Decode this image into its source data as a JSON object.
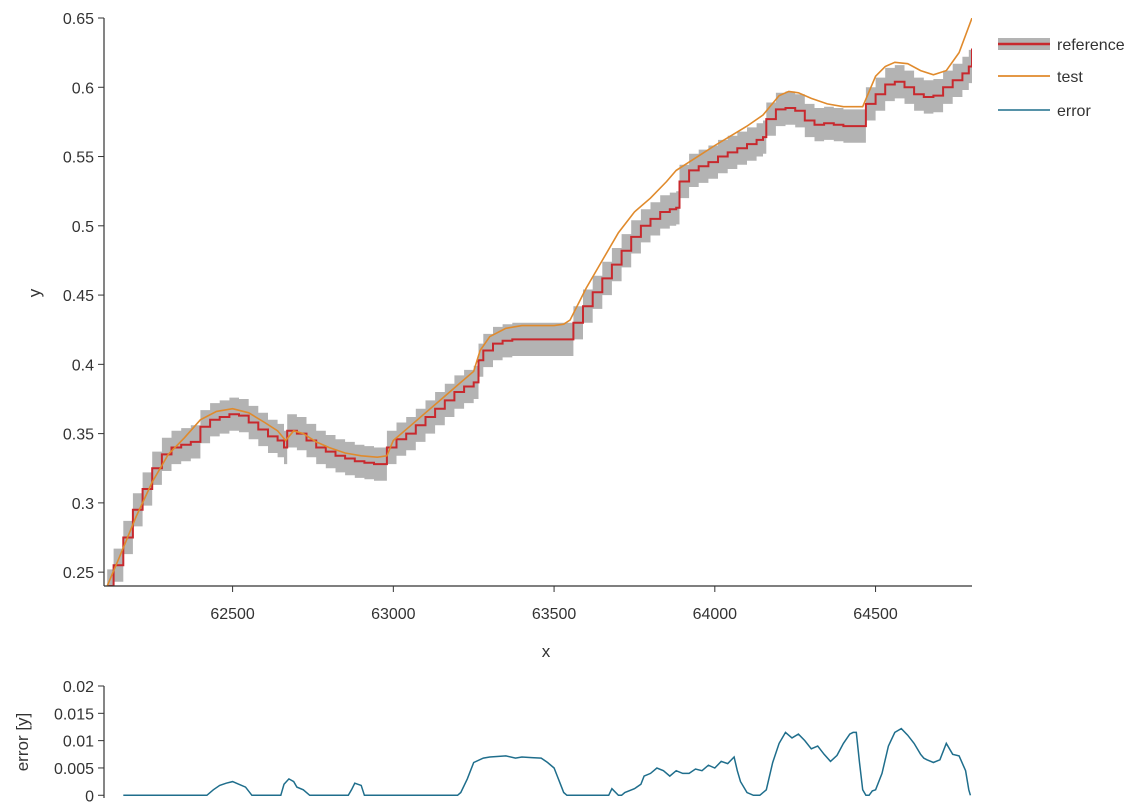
{
  "chart_data": [
    {
      "type": "line",
      "title": "",
      "xlabel": "x",
      "ylabel": "y",
      "xlim": [
        62100,
        64800
      ],
      "ylim": [
        0.24,
        0.65
      ],
      "xticks": [
        62500,
        63000,
        63500,
        64000,
        64500
      ],
      "xtick_labels": [
        "62500",
        "63000",
        "63500",
        "64000",
        "64500"
      ],
      "yticks": [
        0.25,
        0.3,
        0.35,
        0.4,
        0.45,
        0.5,
        0.55,
        0.6,
        0.65
      ],
      "ytick_labels": [
        "0.25",
        "0.3",
        "0.35",
        "0.4",
        "0.45",
        "0.5",
        "0.55",
        "0.6",
        "0.65"
      ],
      "grid": false,
      "legend_position": "top-right",
      "tolerance_band_halfwidth": 0.012,
      "series": [
        {
          "name": "reference",
          "color": "#c8282d",
          "band_color": "#b3b3b3",
          "step": true,
          "x": [
            62110,
            62130,
            62160,
            62190,
            62220,
            62250,
            62280,
            62310,
            62340,
            62370,
            62400,
            62430,
            62460,
            62490,
            62520,
            62550,
            62580,
            62610,
            62640,
            62660,
            62670,
            62700,
            62730,
            62760,
            62790,
            62820,
            62850,
            62880,
            62910,
            62940,
            62960,
            62980,
            63010,
            63040,
            63070,
            63100,
            63130,
            63160,
            63190,
            63220,
            63250,
            63265,
            63280,
            63310,
            63340,
            63370,
            63400,
            63430,
            63460,
            63490,
            63520,
            63545,
            63560,
            63590,
            63620,
            63650,
            63680,
            63710,
            63740,
            63770,
            63800,
            63830,
            63860,
            63880,
            63890,
            63920,
            63950,
            63980,
            64010,
            64040,
            64070,
            64100,
            64130,
            64150,
            64160,
            64190,
            64220,
            64250,
            64280,
            64310,
            64340,
            64370,
            64400,
            64430,
            64440,
            64455,
            64470,
            64500,
            64530,
            64560,
            64590,
            64620,
            64650,
            64680,
            64710,
            64740,
            64770,
            64790,
            64800
          ],
          "values": [
            0.24,
            0.255,
            0.275,
            0.295,
            0.31,
            0.325,
            0.335,
            0.34,
            0.342,
            0.344,
            0.355,
            0.36,
            0.362,
            0.364,
            0.363,
            0.358,
            0.353,
            0.348,
            0.345,
            0.34,
            0.352,
            0.35,
            0.345,
            0.34,
            0.337,
            0.334,
            0.332,
            0.33,
            0.329,
            0.328,
            0.328,
            0.34,
            0.346,
            0.35,
            0.356,
            0.362,
            0.368,
            0.374,
            0.38,
            0.384,
            0.387,
            0.403,
            0.41,
            0.415,
            0.417,
            0.418,
            0.418,
            0.418,
            0.418,
            0.418,
            0.418,
            0.418,
            0.43,
            0.442,
            0.452,
            0.462,
            0.472,
            0.482,
            0.492,
            0.5,
            0.505,
            0.51,
            0.512,
            0.513,
            0.532,
            0.54,
            0.543,
            0.546,
            0.55,
            0.553,
            0.556,
            0.559,
            0.562,
            0.564,
            0.577,
            0.584,
            0.585,
            0.583,
            0.576,
            0.573,
            0.574,
            0.573,
            0.572,
            0.572,
            0.572,
            0.572,
            0.588,
            0.595,
            0.602,
            0.604,
            0.6,
            0.595,
            0.593,
            0.594,
            0.6,
            0.605,
            0.61,
            0.615,
            0.628
          ]
        },
        {
          "name": "test",
          "color": "#e08a2c",
          "step": false,
          "x": [
            62110,
            62150,
            62200,
            62250,
            62300,
            62350,
            62400,
            62450,
            62500,
            62550,
            62600,
            62640,
            62665,
            62690,
            62720,
            62760,
            62800,
            62850,
            62900,
            62950,
            62980,
            63000,
            63050,
            63100,
            63150,
            63200,
            63250,
            63270,
            63300,
            63350,
            63400,
            63450,
            63500,
            63530,
            63550,
            63600,
            63650,
            63700,
            63750,
            63800,
            63850,
            63880,
            63920,
            63960,
            64000,
            64050,
            64100,
            64150,
            64200,
            64230,
            64260,
            64300,
            64350,
            64400,
            64440,
            64460,
            64500,
            64530,
            64560,
            64600,
            64640,
            64680,
            64720,
            64760,
            64800
          ],
          "values": [
            0.24,
            0.262,
            0.29,
            0.315,
            0.335,
            0.347,
            0.36,
            0.366,
            0.368,
            0.365,
            0.358,
            0.352,
            0.345,
            0.352,
            0.35,
            0.344,
            0.34,
            0.336,
            0.334,
            0.333,
            0.334,
            0.345,
            0.355,
            0.365,
            0.375,
            0.385,
            0.395,
            0.41,
            0.42,
            0.426,
            0.428,
            0.428,
            0.428,
            0.429,
            0.432,
            0.455,
            0.475,
            0.495,
            0.51,
            0.52,
            0.532,
            0.54,
            0.546,
            0.552,
            0.558,
            0.565,
            0.572,
            0.58,
            0.594,
            0.597,
            0.596,
            0.592,
            0.588,
            0.586,
            0.586,
            0.586,
            0.608,
            0.615,
            0.618,
            0.617,
            0.612,
            0.609,
            0.612,
            0.625,
            0.65
          ]
        }
      ]
    },
    {
      "type": "line",
      "title": "",
      "xlabel": "",
      "ylabel": "error [y]",
      "xlim": [
        62100,
        64800
      ],
      "ylim": [
        -0.0005,
        0.02
      ],
      "yticks": [
        0,
        0.005,
        0.01,
        0.015,
        0.02
      ],
      "ytick_labels": [
        "0",
        "0.005",
        "0.01",
        "0.015",
        "0.02"
      ],
      "grid": false,
      "series": [
        {
          "name": "error",
          "color": "#1f6e8c",
          "x": [
            62160,
            62420,
            62440,
            62460,
            62480,
            62500,
            62520,
            62540,
            62560,
            62650,
            62660,
            62675,
            62690,
            62700,
            62720,
            62740,
            62860,
            62870,
            62880,
            62890,
            62900,
            62910,
            63200,
            63210,
            63230,
            63250,
            63280,
            63300,
            63350,
            63380,
            63400,
            63430,
            63460,
            63480,
            63500,
            63510,
            63520,
            63530,
            63540,
            63560,
            63600,
            63670,
            63680,
            63700,
            63710,
            63720,
            63750,
            63770,
            63780,
            63800,
            63820,
            63840,
            63860,
            63880,
            63900,
            63920,
            63940,
            63960,
            63980,
            64000,
            64020,
            64040,
            64060,
            64070,
            64080,
            64100,
            64120,
            64140,
            64160,
            64180,
            64200,
            64220,
            64240,
            64260,
            64280,
            64300,
            64320,
            64340,
            64360,
            64380,
            64400,
            64420,
            64430,
            64440,
            64450,
            64460,
            64470,
            64480,
            64490,
            64500,
            64520,
            64540,
            64560,
            64580,
            64600,
            64620,
            64640,
            64650,
            64660,
            64680,
            64700,
            64720,
            64740,
            64760,
            64780,
            64790,
            64795
          ],
          "values": [
            0,
            0,
            0.001,
            0.0018,
            0.0022,
            0.0025,
            0.002,
            0.0015,
            0,
            0,
            0.002,
            0.003,
            0.0025,
            0.0015,
            0.001,
            0,
            0,
            0.001,
            0.0022,
            0.002,
            0.0018,
            0,
            0,
            0.0005,
            0.003,
            0.006,
            0.0068,
            0.007,
            0.0072,
            0.0068,
            0.007,
            0.0069,
            0.0068,
            0.006,
            0.005,
            0.0035,
            0.002,
            0.0005,
            0,
            0,
            0,
            0,
            0.0012,
            0,
            0,
            0.0005,
            0.0012,
            0.002,
            0.0035,
            0.004,
            0.005,
            0.0045,
            0.0035,
            0.0045,
            0.004,
            0.004,
            0.0048,
            0.0045,
            0.0055,
            0.005,
            0.0062,
            0.0058,
            0.007,
            0.0045,
            0.0025,
            0.0005,
            0,
            0,
            0.001,
            0.006,
            0.0095,
            0.0115,
            0.0105,
            0.0112,
            0.01,
            0.0085,
            0.009,
            0.0075,
            0.0062,
            0.0073,
            0.0095,
            0.0112,
            0.0115,
            0.0115,
            0.006,
            0.001,
            0,
            0,
            0.0008,
            0.001,
            0.004,
            0.009,
            0.0115,
            0.0122,
            0.011,
            0.0095,
            0.0075,
            0.0068,
            0.0065,
            0.006,
            0.0065,
            0.0095,
            0.0075,
            0.0072,
            0.0045,
            0.001,
            0
          ]
        }
      ]
    }
  ]
}
